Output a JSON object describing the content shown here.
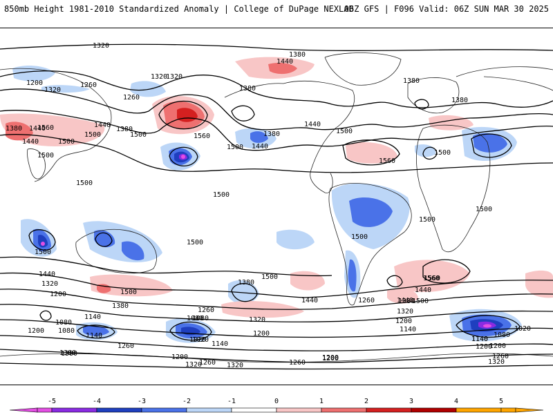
{
  "header": {
    "title_left": "850mb Height 1981-2010 Standardized Anomaly | College of DuPage NEXLAB",
    "title_right": "06Z GFS | F096 Valid: 06Z SUN MAR 30 2025"
  },
  "colors": {
    "anom_-5": "#e34fe3",
    "anom_-4": "#8a2be2",
    "anom_-3": "#1f3fbf",
    "anom_-2": "#4a72e8",
    "anom_-1": "#bcd6f7",
    "anom_0": "#ffffff",
    "anom_1": "#f8c6c6",
    "anom_2": "#ee7070",
    "anom_3": "#d42020",
    "anom_4": "#b00000",
    "anom_5": "#ffa500"
  },
  "colorbar": {
    "ticks": [
      "-5",
      "-4",
      "-3",
      "-2",
      "-1",
      "0",
      "1",
      "2",
      "3",
      "4",
      "5"
    ]
  },
  "contour_labels": [
    "1320",
    "1380",
    "1440",
    "1200",
    "1320",
    "1260",
    "1260",
    "1320",
    "1380",
    "1380",
    "1380",
    "1560",
    "1440",
    "1500",
    "1500",
    "1440",
    "1380",
    "1500",
    "1380",
    "1440",
    "1440",
    "1500",
    "1560",
    "1560",
    "1500",
    "1440",
    "1380",
    "1320",
    "1500",
    "1500",
    "1500",
    "1500",
    "1500",
    "1500",
    "1500",
    "1500",
    "1500",
    "1440",
    "1320",
    "1200",
    "1500",
    "1560",
    "1380",
    "1440",
    "1260",
    "1320",
    "1380",
    "1500",
    "1440",
    "1380",
    "1260",
    "1500",
    "1560",
    "1440",
    "1320",
    "1200",
    "1140",
    "1080",
    "1020",
    "1080",
    "1200",
    "1140",
    "1140",
    "1080",
    "1020",
    "1260",
    "1200",
    "1140",
    "1200",
    "1380",
    "1200",
    "1260",
    "1320",
    "1320",
    "1260",
    "1200",
    "1140",
    "1080",
    "1200",
    "1140",
    "1080",
    "1020",
    "1260",
    "1320",
    "1200",
    "1380"
  ]
}
